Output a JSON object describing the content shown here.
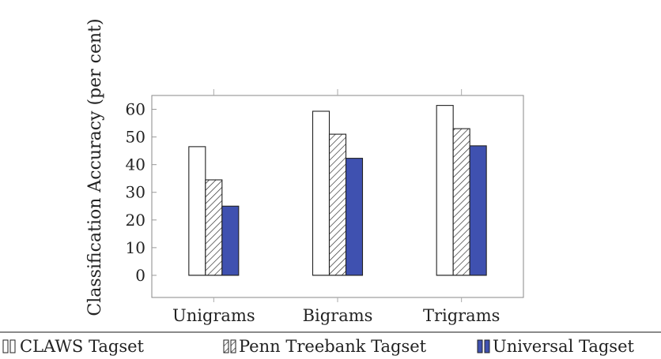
{
  "chart_data": {
    "type": "bar",
    "ylabel": "Classification Accuracy (per cent)",
    "xlabel": "",
    "categories": [
      "Unigrams",
      "Bigrams",
      "Trigrams"
    ],
    "ylim": [
      -8,
      65
    ],
    "yticks": [
      0,
      10,
      20,
      30,
      40,
      50,
      60
    ],
    "grid": false,
    "legend_position": "bottom",
    "series": [
      {
        "name": "CLAWS Tagset",
        "values": [
          46.5,
          59.3,
          61.4
        ],
        "fill": "#ffffff",
        "pattern": "none"
      },
      {
        "name": "Penn Treebank Tagset",
        "values": [
          34.5,
          51.0,
          53.0
        ],
        "fill": "#ffffff",
        "pattern": "hatch"
      },
      {
        "name": "Universal Tagset",
        "values": [
          25.0,
          42.3,
          46.8
        ],
        "fill": "#3f51b0",
        "pattern": "solid"
      }
    ],
    "colors": {
      "universal_fill": "#3f51b0",
      "edge": "#222222",
      "frame": "#888888"
    }
  }
}
